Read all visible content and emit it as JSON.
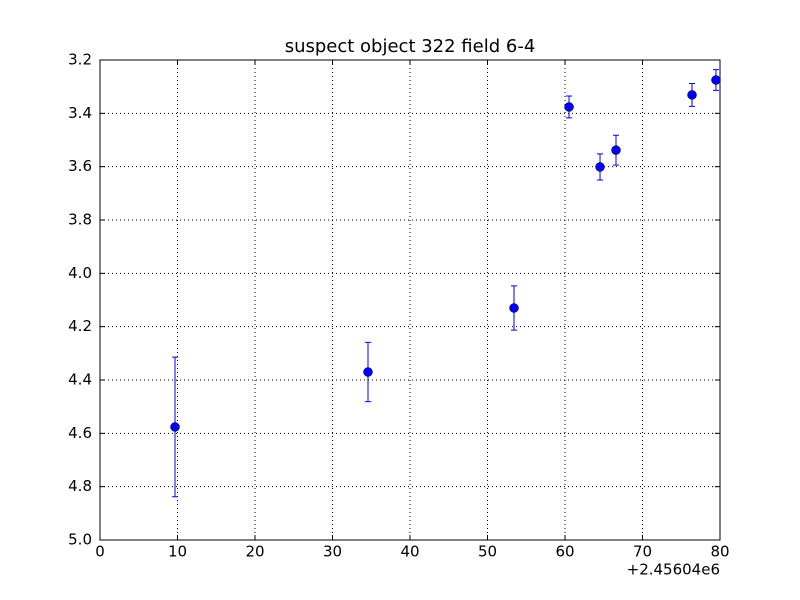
{
  "chart_data": {
    "type": "errorbar",
    "title": "suspect object 322 field 6-4",
    "x_offset_label": "+2.45604e6",
    "x": [
      9.68,
      34.58,
      53.42,
      60.52,
      64.52,
      66.58,
      76.39,
      79.48
    ],
    "series": [
      {
        "color": "#0000ff",
        "values": [
          4.576,
          4.37,
          4.13,
          3.376,
          3.601,
          3.538,
          3.331,
          3.275
        ],
        "errors": [
          0.262,
          0.111,
          0.083,
          0.041,
          0.049,
          0.056,
          0.043,
          0.039
        ]
      }
    ],
    "xlim": [
      0,
      80
    ],
    "xticks": [
      0,
      10,
      20,
      30,
      40,
      50,
      60,
      70,
      80
    ],
    "ylim": [
      3.2,
      5.0
    ],
    "y_inverted": true,
    "yticks": [
      3.2,
      3.4,
      3.6,
      3.8,
      {
        "value": 4,
        "label": "4.0"
      },
      4.2,
      4.4,
      4.6,
      4.8,
      {
        "value": 5,
        "label": "5.0"
      }
    ],
    "grid": true
  }
}
